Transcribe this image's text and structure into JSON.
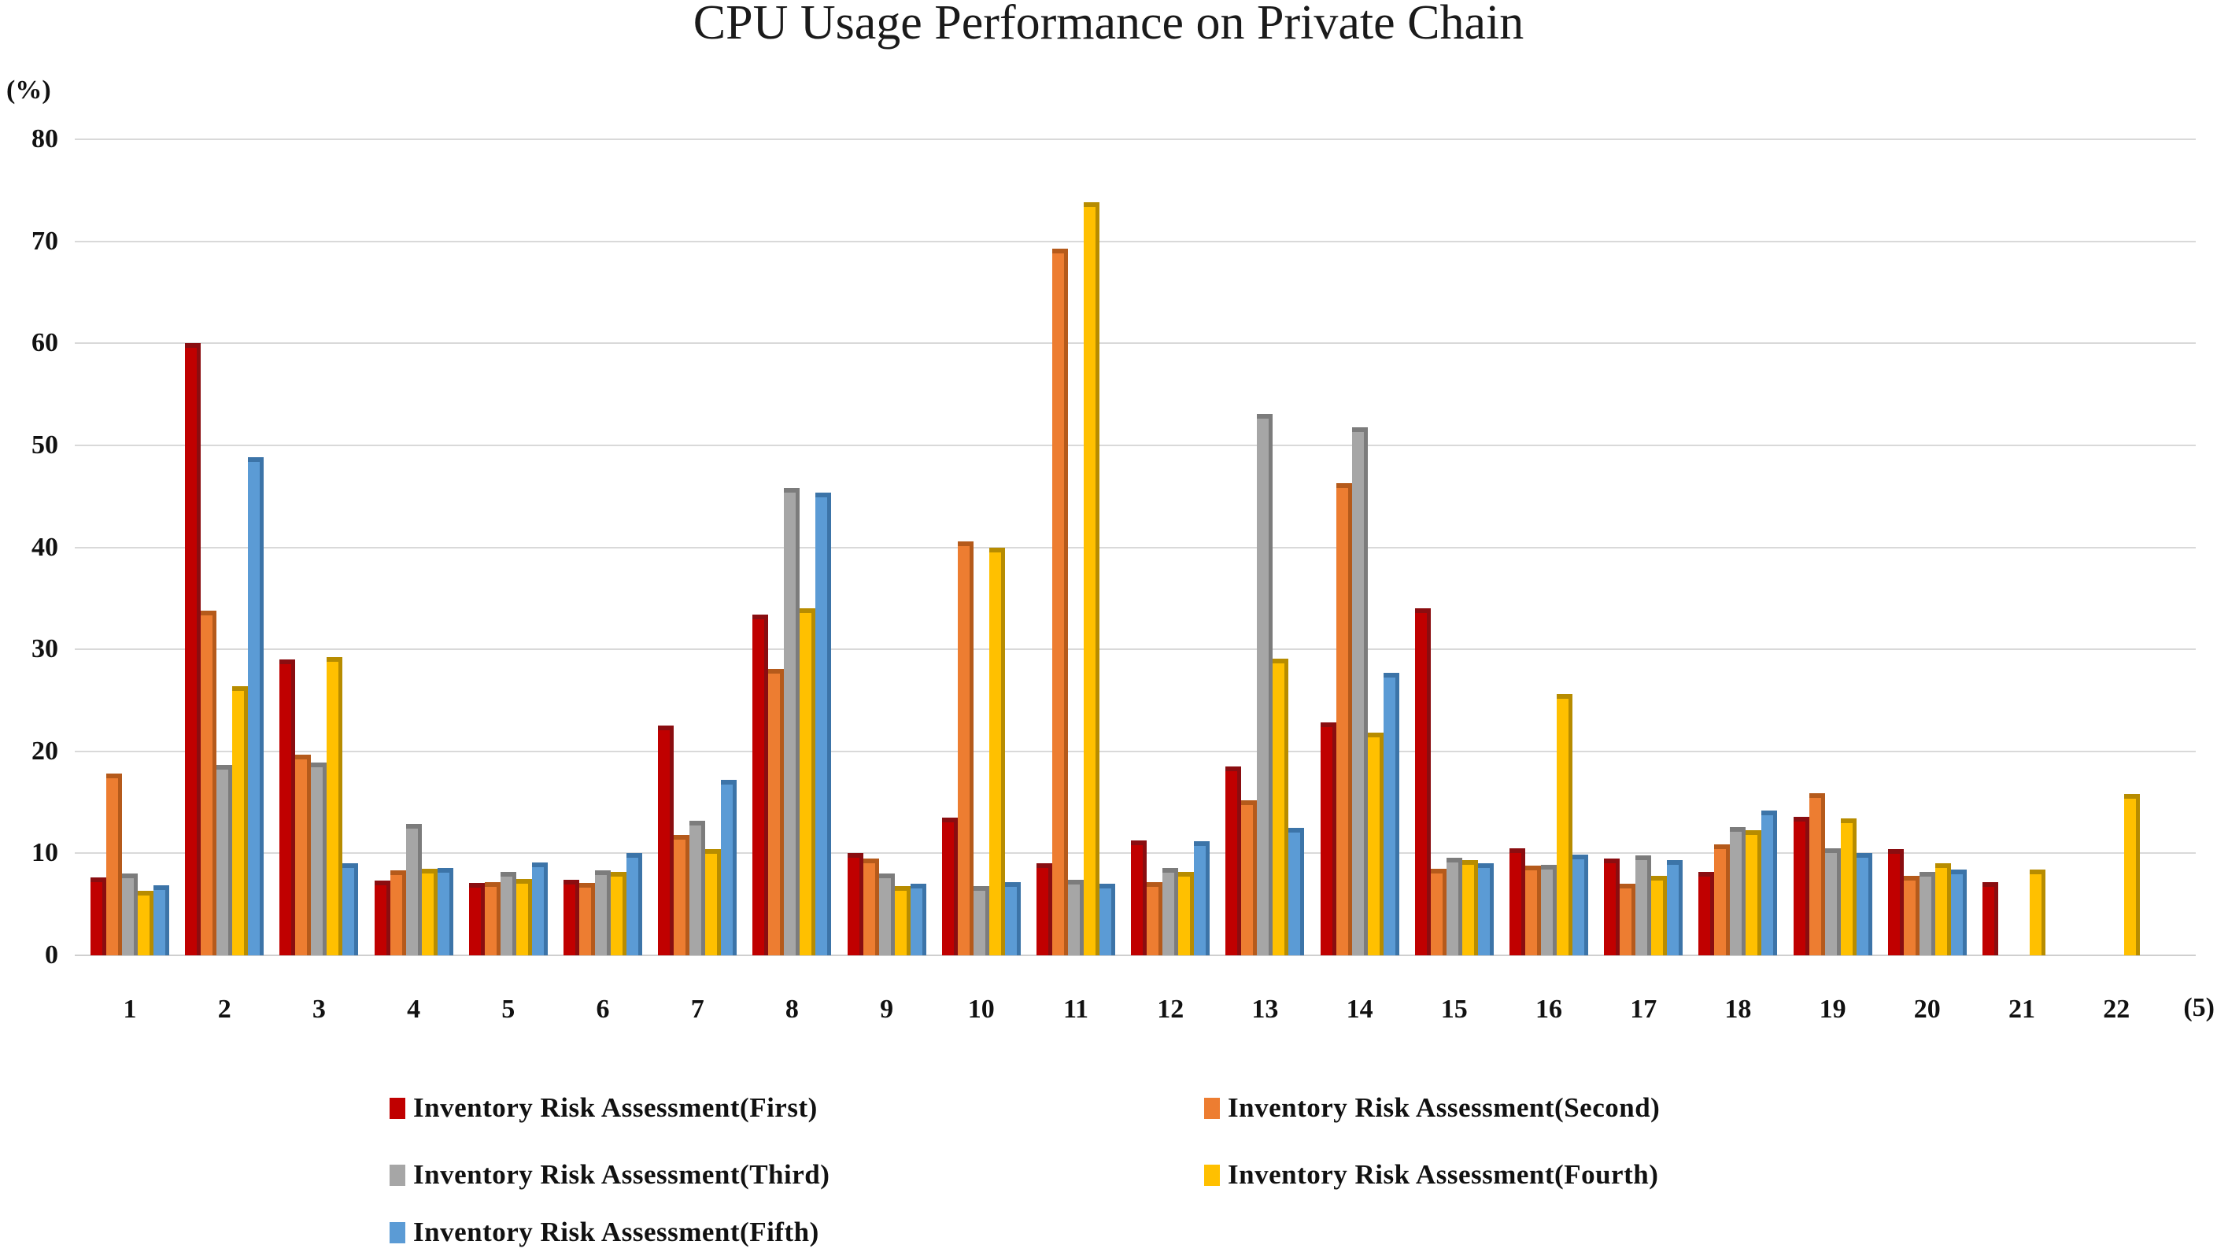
{
  "title": "CPU Usage Performance on Private Chain",
  "y_axis_unit_label": "(%)",
  "x_axis_unit_label": "(5)",
  "chart_data": {
    "type": "bar",
    "title": "CPU Usage Performance on Private Chain",
    "xlabel": "(5)",
    "ylabel": "(%)",
    "ylim": [
      0,
      80
    ],
    "ytick_step": 10,
    "grid": true,
    "legend_position": "bottom",
    "categories": [
      "1",
      "2",
      "3",
      "4",
      "5",
      "6",
      "7",
      "8",
      "9",
      "10",
      "11",
      "12",
      "13",
      "14",
      "15",
      "16",
      "17",
      "18",
      "19",
      "20",
      "21",
      "22"
    ],
    "series": [
      {
        "name": "Inventory Risk Assessment(First)",
        "color": "#c00000",
        "shade": "#8a0d10",
        "values": [
          7.6,
          60.0,
          29.0,
          7.3,
          7.1,
          7.4,
          22.5,
          33.4,
          10.0,
          13.5,
          9.0,
          11.3,
          18.5,
          22.8,
          34.0,
          10.5,
          9.5,
          8.2,
          13.6,
          10.4,
          7.2,
          0
        ]
      },
      {
        "name": "Inventory Risk Assessment(Second)",
        "color": "#ed7d31",
        "shade": "#b55a1b",
        "values": [
          17.8,
          33.8,
          19.7,
          8.3,
          7.2,
          7.1,
          11.8,
          28.1,
          9.5,
          40.6,
          69.3,
          7.2,
          15.2,
          46.3,
          8.5,
          8.8,
          7.0,
          10.9,
          15.9,
          7.8,
          0,
          0
        ]
      },
      {
        "name": "Inventory Risk Assessment(Third)",
        "color": "#a6a6a6",
        "shade": "#7c7c7c",
        "values": [
          8.0,
          18.7,
          18.9,
          12.9,
          8.2,
          8.3,
          13.2,
          45.8,
          8.0,
          6.8,
          7.4,
          8.6,
          53.1,
          51.8,
          9.6,
          8.9,
          9.8,
          12.6,
          10.5,
          8.2,
          0,
          0
        ]
      },
      {
        "name": "Inventory Risk Assessment(Fourth)",
        "color": "#ffc000",
        "shade": "#b78c00",
        "values": [
          6.3,
          26.4,
          29.2,
          8.5,
          7.5,
          8.2,
          10.4,
          34.0,
          6.8,
          40.0,
          73.8,
          8.2,
          29.1,
          21.8,
          9.3,
          25.6,
          7.8,
          12.3,
          13.4,
          9.0,
          8.4,
          15.8
        ]
      },
      {
        "name": "Inventory Risk Assessment(Fifth)",
        "color": "#5b9bd5",
        "shade": "#3c74a8",
        "values": [
          6.9,
          48.8,
          9.0,
          8.6,
          9.1,
          10.0,
          17.2,
          45.4,
          7.0,
          7.2,
          7.0,
          11.2,
          12.5,
          27.7,
          9.0,
          9.9,
          9.3,
          14.2,
          10.0,
          8.4,
          0,
          0
        ]
      }
    ]
  },
  "legend": {
    "items": [
      {
        "label": "Inventory Risk Assessment(First)",
        "color": "#c00000"
      },
      {
        "label": "Inventory Risk Assessment(Second)",
        "color": "#ed7d31"
      },
      {
        "label": "Inventory Risk Assessment(Third)",
        "color": "#a6a6a6"
      },
      {
        "label": "Inventory Risk Assessment(Fourth)",
        "color": "#ffc000"
      },
      {
        "label": "Inventory Risk Assessment(Fifth)",
        "color": "#5b9bd5"
      }
    ]
  }
}
